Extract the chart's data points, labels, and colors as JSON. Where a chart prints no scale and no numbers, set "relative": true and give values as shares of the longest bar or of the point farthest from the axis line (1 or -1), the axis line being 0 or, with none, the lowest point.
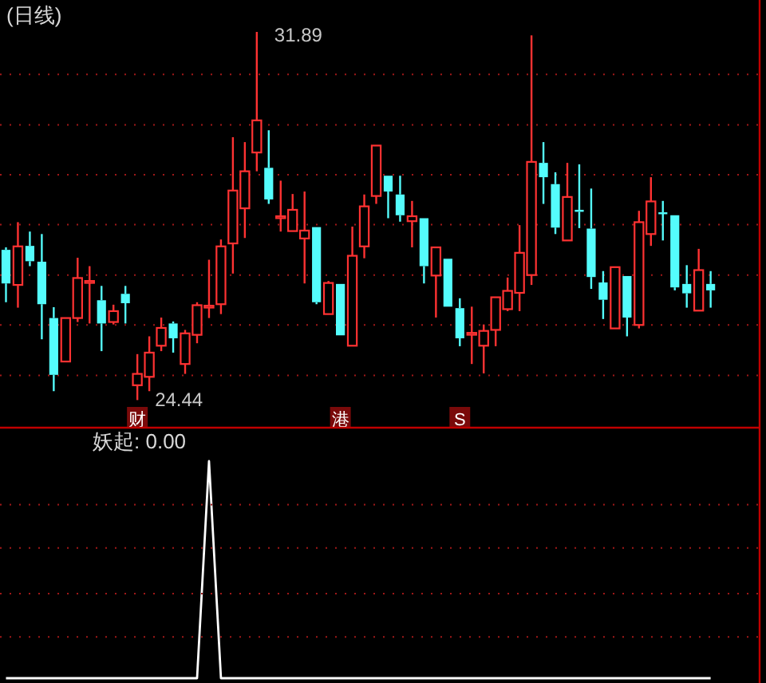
{
  "chart_data": [
    {
      "type": "candlestick",
      "title": "(日线)",
      "ref_lines": [
        {
          "axis": "y",
          "value": 31.03,
          "color": "#a01818",
          "line_style": "dotted"
        },
        {
          "axis": "y",
          "value": 30.01,
          "color": "#a01818",
          "line_style": "dotted"
        },
        {
          "axis": "y",
          "value": 29.0,
          "color": "#a01818",
          "line_style": "dotted"
        },
        {
          "axis": "y",
          "value": 27.99,
          "color": "#a01818",
          "line_style": "dotted"
        },
        {
          "axis": "y",
          "value": 26.97,
          "color": "#a01818",
          "line_style": "dotted"
        },
        {
          "axis": "y",
          "value": 25.96,
          "color": "#a01818",
          "line_style": "dotted"
        },
        {
          "axis": "y",
          "value": 24.94,
          "color": "#a01818",
          "line_style": "dotted"
        }
      ],
      "categories": [
        null,
        null,
        null,
        null,
        null,
        null,
        null,
        null,
        null,
        null,
        null,
        "财",
        null,
        null,
        null,
        null,
        null,
        null,
        null,
        null,
        null,
        null,
        null,
        null,
        null,
        null,
        null,
        null,
        "港",
        null,
        null,
        null,
        null,
        null,
        null,
        null,
        null,
        null,
        "S",
        null,
        null,
        null,
        null,
        null,
        null,
        null,
        null,
        null,
        null,
        null,
        null,
        null,
        null,
        null,
        null,
        null,
        null,
        null,
        null,
        null
      ],
      "ohlc": [
        [
          27.48,
          27.53,
          26.42,
          26.8
        ],
        [
          26.77,
          28.04,
          26.31,
          27.55
        ],
        [
          27.56,
          27.85,
          27.15,
          27.25
        ],
        [
          27.24,
          27.8,
          25.67,
          26.38
        ],
        [
          26.1,
          26.32,
          24.62,
          24.95
        ],
        [
          25.22,
          26.1,
          25.22,
          26.1
        ],
        [
          26.1,
          27.32,
          26.02,
          26.91
        ],
        [
          26.83,
          27.15,
          25.99,
          26.85
        ],
        [
          26.46,
          26.75,
          25.43,
          25.99
        ],
        [
          26.02,
          26.37,
          25.97,
          26.24
        ],
        [
          26.59,
          26.75,
          25.99,
          26.4
        ],
        [
          24.74,
          25.37,
          24.44,
          24.97
        ],
        [
          24.91,
          25.73,
          24.62,
          25.4
        ],
        [
          25.54,
          26.11,
          25.43,
          25.9
        ],
        [
          25.99,
          26.03,
          25.4,
          25.69
        ],
        [
          25.17,
          25.86,
          24.97,
          25.79
        ],
        [
          25.76,
          26.42,
          25.59,
          26.36
        ],
        [
          26.32,
          27.28,
          26.1,
          26.35
        ],
        [
          26.38,
          27.69,
          26.18,
          27.55
        ],
        [
          27.61,
          29.76,
          27.0,
          28.68
        ],
        [
          28.32,
          29.66,
          27.72,
          29.07
        ],
        [
          29.45,
          31.89,
          29.07,
          30.1
        ],
        [
          29.14,
          29.9,
          28.41,
          28.5
        ],
        [
          28.13,
          28.88,
          27.85,
          28.16
        ],
        [
          27.86,
          28.61,
          27.85,
          28.29
        ],
        [
          27.71,
          28.66,
          26.8,
          27.87
        ],
        [
          27.94,
          27.96,
          26.38,
          26.42
        ],
        [
          26.18,
          26.85,
          26.18,
          26.81
        ],
        [
          26.79,
          26.79,
          25.73,
          25.75
        ],
        [
          25.54,
          27.95,
          25.54,
          27.36
        ],
        [
          27.55,
          28.6,
          27.31,
          28.36
        ],
        [
          28.57,
          29.59,
          28.41,
          29.59
        ],
        [
          28.98,
          29.0,
          28.12,
          28.66
        ],
        [
          28.6,
          28.98,
          28.05,
          28.18
        ],
        [
          28.06,
          28.47,
          27.53,
          28.16
        ],
        [
          28.12,
          28.14,
          26.8,
          27.15
        ],
        [
          26.96,
          27.56,
          26.11,
          27.53
        ],
        [
          27.3,
          27.3,
          26.31,
          26.33
        ],
        [
          26.3,
          26.5,
          25.53,
          25.69
        ],
        [
          25.78,
          26.33,
          25.17,
          25.8
        ],
        [
          25.54,
          25.97,
          24.98,
          25.84
        ],
        [
          25.86,
          26.52,
          25.53,
          26.52
        ],
        [
          26.28,
          26.92,
          26.24,
          26.65
        ],
        [
          26.61,
          27.98,
          26.24,
          27.42
        ],
        [
          26.97,
          31.82,
          26.77,
          29.26
        ],
        [
          29.24,
          29.66,
          28.41,
          28.95
        ],
        [
          28.81,
          29.05,
          27.8,
          27.93
        ],
        [
          27.67,
          29.24,
          27.64,
          28.55
        ],
        [
          28.29,
          29.21,
          27.92,
          28.25
        ],
        [
          27.91,
          28.72,
          26.69,
          26.93
        ],
        [
          26.82,
          27.05,
          26.08,
          26.47
        ],
        [
          25.89,
          27.13,
          25.89,
          27.13
        ],
        [
          26.95,
          26.98,
          25.73,
          26.11
        ],
        [
          25.96,
          28.27,
          25.89,
          28.04
        ],
        [
          27.8,
          28.95,
          27.56,
          28.46
        ],
        [
          28.24,
          28.47,
          27.67,
          28.22
        ],
        [
          28.18,
          28.18,
          26.66,
          26.72
        ],
        [
          26.79,
          27.17,
          26.31,
          26.6
        ],
        [
          26.25,
          27.5,
          26.25,
          27.07
        ],
        [
          26.79,
          27.05,
          26.31,
          26.66
        ]
      ],
      "colors": [
        "#54fcfc",
        "#ff3232",
        "#54fcfc",
        "#54fcfc",
        "#54fcfc",
        "#ff3232",
        "#ff3232",
        "#ff3232",
        "#54fcfc",
        "#ff3232",
        "#54fcfc",
        "#ff3232",
        "#ff3232",
        "#ff3232",
        "#54fcfc",
        "#ff3232",
        "#ff3232",
        "#ff3232",
        "#ff3232",
        "#ff3232",
        "#ff3232",
        "#ff3232",
        "#54fcfc",
        "#ff3232",
        "#ff3232",
        "#ff3232",
        "#54fcfc",
        "#ff3232",
        "#54fcfc",
        "#ff3232",
        "#ff3232",
        "#ff3232",
        "#54fcfc",
        "#54fcfc",
        "#ff3232",
        "#54fcfc",
        "#ff3232",
        "#54fcfc",
        "#54fcfc",
        "#ff3232",
        "#ff3232",
        "#ff3232",
        "#ff3232",
        "#ff3232",
        "#ff3232",
        "#54fcfc",
        "#54fcfc",
        "#ff3232",
        "#54fcfc",
        "#54fcfc",
        "#54fcfc",
        "#ff3232",
        "#54fcfc",
        "#ff3232",
        "#ff3232",
        "#54fcfc",
        "#54fcfc",
        "#54fcfc",
        "#ff3232",
        "#54fcfc"
      ],
      "annotations": [
        "31.89",
        "24.44"
      ]
    },
    {
      "type": "line",
      "title": "妖起: 0.00",
      "relative": true,
      "ref_lines": [
        {
          "axis": "y",
          "value": 0.8,
          "color": "#a01818",
          "line_style": "dotted"
        },
        {
          "axis": "y",
          "value": 0.6,
          "color": "#a01818",
          "line_style": "dotted"
        },
        {
          "axis": "y",
          "value": 0.39,
          "color": "#a01818",
          "line_style": "dotted"
        },
        {
          "axis": "y",
          "value": 0.19,
          "color": "#a01818",
          "line_style": "dotted"
        }
      ],
      "categories": [
        null,
        null,
        null,
        null,
        null,
        null,
        null,
        null,
        null,
        null,
        null,
        null,
        null,
        null,
        null,
        null,
        null,
        null,
        null,
        null,
        null,
        null,
        null,
        null,
        null,
        null,
        null,
        null,
        null,
        null,
        null,
        null,
        null,
        null,
        null,
        null,
        null,
        null,
        null,
        null,
        null,
        null,
        null,
        null,
        null,
        null,
        null,
        null,
        null,
        null,
        null,
        null,
        null,
        null,
        null,
        null,
        null,
        null,
        null,
        null
      ],
      "series": [
        {
          "color": "#ffffff",
          "values": [
            0,
            0,
            0,
            0,
            0,
            0,
            0,
            0,
            0,
            0,
            0,
            0,
            0,
            0,
            0,
            0,
            0,
            1,
            0,
            0,
            0,
            0,
            0,
            0,
            0,
            0,
            0,
            0,
            0,
            0,
            0,
            0,
            0,
            0,
            0,
            0,
            0,
            0,
            0,
            0,
            0,
            0,
            0,
            0,
            0,
            0,
            0,
            0,
            0,
            0,
            0,
            0,
            0,
            0,
            0,
            0,
            0,
            0,
            0,
            0
          ]
        }
      ]
    }
  ]
}
